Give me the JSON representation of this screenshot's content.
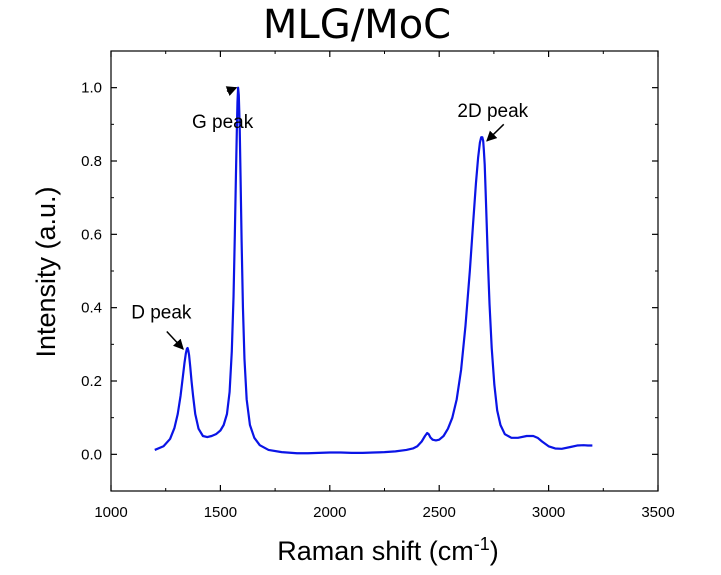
{
  "chart_data": {
    "type": "line",
    "title": "MLG/MoC",
    "xlabel": "Raman shift (cm",
    "xlabel_sup": "-1",
    "xlabel_end": ")",
    "ylabel": "Intensity (a.u.)",
    "xlim": [
      1000,
      3500
    ],
    "ylim": [
      -0.1,
      1.1
    ],
    "xticks": [
      1000,
      1500,
      2000,
      2500,
      3000,
      3500
    ],
    "yticks": [
      0.0,
      0.2,
      0.4,
      0.6,
      0.8,
      1.0
    ],
    "xtick_labels": [
      "1000",
      "1500",
      "2000",
      "2500",
      "3000",
      "3500"
    ],
    "ytick_labels": [
      "0.0",
      "0.2",
      "0.4",
      "0.6",
      "0.8",
      "1.0"
    ],
    "grid": false,
    "legend": "none",
    "line_color": "#0a14e6",
    "series": [
      {
        "x": [
          1200,
          1240,
          1270,
          1290,
          1305,
          1318,
          1328,
          1336,
          1342,
          1347,
          1350,
          1353,
          1357,
          1362,
          1368,
          1375,
          1385,
          1400,
          1420,
          1440,
          1460,
          1480,
          1500,
          1515,
          1530,
          1542,
          1552,
          1560,
          1566,
          1571,
          1575,
          1578,
          1581,
          1584,
          1588,
          1592,
          1597,
          1603,
          1610,
          1620,
          1635,
          1655,
          1680,
          1720,
          1780,
          1850,
          1900,
          1950,
          2000,
          2050,
          2100,
          2150,
          2200,
          2250,
          2300,
          2350,
          2380,
          2400,
          2420,
          2435,
          2445,
          2452,
          2460,
          2470,
          2485,
          2500,
          2520,
          2540,
          2560,
          2580,
          2600,
          2620,
          2640,
          2655,
          2668,
          2678,
          2686,
          2692,
          2697,
          2701,
          2704,
          2708,
          2712,
          2717,
          2723,
          2730,
          2740,
          2752,
          2765,
          2780,
          2800,
          2830,
          2860,
          2900,
          2930,
          2950,
          2970,
          3000,
          3030,
          3060,
          3100,
          3130,
          3160,
          3180,
          3200
        ],
        "y": [
          0.012,
          0.022,
          0.042,
          0.072,
          0.11,
          0.16,
          0.21,
          0.25,
          0.275,
          0.288,
          0.29,
          0.284,
          0.27,
          0.24,
          0.2,
          0.16,
          0.11,
          0.07,
          0.05,
          0.047,
          0.05,
          0.055,
          0.065,
          0.08,
          0.11,
          0.17,
          0.28,
          0.43,
          0.6,
          0.76,
          0.88,
          0.96,
          1.0,
          0.98,
          0.9,
          0.76,
          0.58,
          0.4,
          0.26,
          0.15,
          0.08,
          0.045,
          0.025,
          0.012,
          0.006,
          0.003,
          0.003,
          0.004,
          0.005,
          0.005,
          0.004,
          0.004,
          0.005,
          0.006,
          0.008,
          0.012,
          0.016,
          0.022,
          0.035,
          0.05,
          0.058,
          0.055,
          0.046,
          0.04,
          0.038,
          0.04,
          0.05,
          0.07,
          0.1,
          0.15,
          0.23,
          0.35,
          0.5,
          0.63,
          0.74,
          0.81,
          0.85,
          0.865,
          0.865,
          0.855,
          0.83,
          0.79,
          0.72,
          0.63,
          0.52,
          0.41,
          0.29,
          0.19,
          0.12,
          0.08,
          0.055,
          0.045,
          0.045,
          0.05,
          0.05,
          0.045,
          0.035,
          0.022,
          0.016,
          0.015,
          0.02,
          0.024,
          0.025,
          0.024,
          0.024
        ]
      }
    ],
    "annotations": [
      {
        "text": "G peak",
        "text_x": 1510,
        "text_y": 0.89,
        "arrow_from_x": 1530,
        "arrow_from_y": 0.99,
        "arrow_to_x": 1573,
        "arrow_to_y": 1.0
      },
      {
        "text": "2D peak",
        "text_x": 2745,
        "text_y": 0.92,
        "arrow_from_x": 2795,
        "arrow_from_y": 0.9,
        "arrow_to_x": 2718,
        "arrow_to_y": 0.855
      },
      {
        "text": "D peak",
        "text_x": 1230,
        "text_y": 0.37,
        "arrow_from_x": 1255,
        "arrow_from_y": 0.335,
        "arrow_to_x": 1330,
        "arrow_to_y": 0.287
      }
    ]
  }
}
